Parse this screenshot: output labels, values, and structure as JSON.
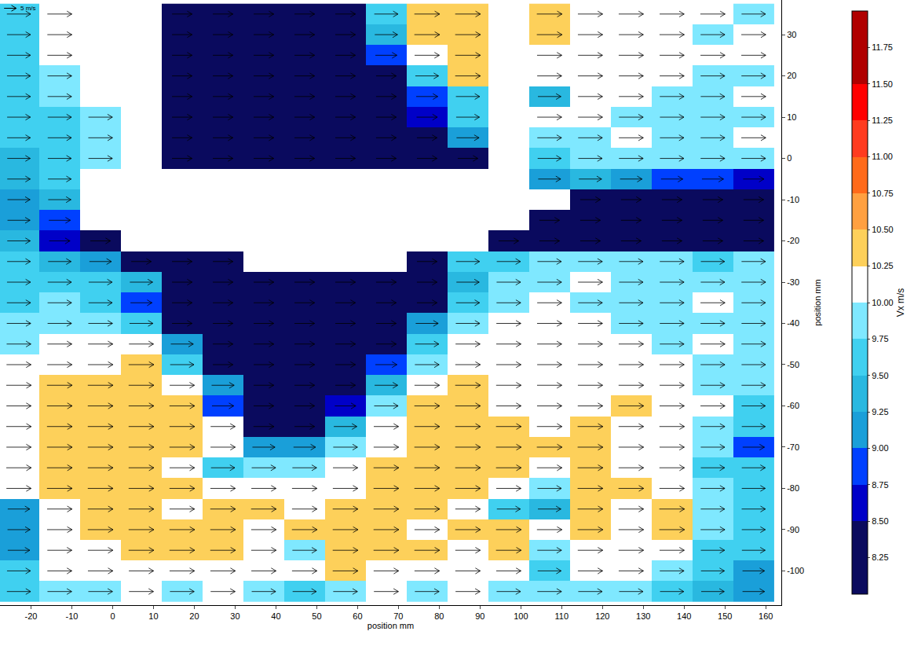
{
  "chart_data": {
    "type": "heatmap",
    "x_label": "position mm",
    "y_label": "position mm",
    "colorbar_title": "Vx m/s",
    "vector_key": {
      "value": 5,
      "label": "5 m/s"
    },
    "xlim": [
      -27.6,
      163.8
    ],
    "xticks": [
      -20,
      -10,
      0,
      10,
      20,
      30,
      40,
      50,
      60,
      70,
      80,
      90,
      100,
      110,
      120,
      130,
      140,
      150,
      160
    ],
    "ylim": [
      -108.3,
      38.4
    ],
    "yticks": [
      -100,
      -90,
      -80,
      -70,
      -60,
      -50,
      -40,
      -30,
      -20,
      -10,
      0,
      10,
      20,
      30
    ],
    "zlim": [
      8,
      12
    ],
    "zticks": [
      8.25,
      {
        "value": 8.5,
        "label": "8.50"
      },
      8.75,
      {
        "value": 9,
        "label": "9.00"
      },
      9.25,
      {
        "value": 9.5,
        "label": "9.50"
      },
      9.75,
      {
        "value": 10,
        "label": "10.00"
      },
      10.25,
      {
        "value": 10.5,
        "label": "10.50"
      },
      10.75,
      {
        "value": 11,
        "label": "11.00"
      },
      11.25,
      {
        "value": 11.5,
        "label": "11.50"
      },
      11.75
    ],
    "levels": [
      8,
      8.5,
      8.75,
      9,
      9.25,
      9.5,
      9.75,
      10,
      10.25,
      10.5,
      10.75,
      11,
      11.25,
      11.5,
      12
    ],
    "colors": [
      "#0a0a5e",
      "#0000c8",
      "#0040ff",
      "#1a9fd9",
      "#29b8e0",
      "#40d0f0",
      "#7fe8ff",
      "#ffffff",
      "#fdd05a",
      "#ffa040",
      "#ff6a1a",
      "#ff3b1f",
      "#ff0000",
      "#b00000"
    ],
    "x": [
      -23,
      -13,
      -3,
      7,
      17,
      27,
      37,
      47,
      57,
      67,
      77,
      87,
      97,
      107,
      117,
      127,
      137,
      147,
      157
    ],
    "y": [
      35,
      30,
      25,
      20,
      15,
      10,
      5,
      0,
      -5,
      -10,
      -15,
      -20,
      -25,
      -30,
      -35,
      -40,
      -45,
      -50,
      -55,
      -60,
      -65,
      -70,
      -75,
      -80,
      -85,
      -90,
      -95,
      -100,
      -105
    ],
    "z": [
      [
        9.7,
        10.0,
        null,
        null,
        8.2,
        8.2,
        8.2,
        8.2,
        8.2,
        9.7,
        10.3,
        10.3,
        null,
        10.3,
        10.1,
        10.1,
        10.0,
        10.1,
        9.8
      ],
      [
        9.6,
        10.0,
        null,
        null,
        8.2,
        8.2,
        8.2,
        8.2,
        8.2,
        9.3,
        10.3,
        10.3,
        null,
        10.3,
        10.1,
        10.0,
        10.1,
        9.9,
        10.0
      ],
      [
        9.6,
        10.0,
        null,
        null,
        8.2,
        8.2,
        8.2,
        8.2,
        8.2,
        8.8,
        10.1,
        10.3,
        null,
        10.1,
        10.0,
        10.1,
        10.0,
        10.0,
        10.0
      ],
      [
        9.6,
        9.9,
        null,
        null,
        8.2,
        8.2,
        8.2,
        8.2,
        8.2,
        8.2,
        9.5,
        10.3,
        null,
        10.0,
        10.1,
        10.0,
        10.0,
        9.9,
        9.9
      ],
      [
        9.6,
        9.8,
        null,
        null,
        8.2,
        8.2,
        8.2,
        8.2,
        8.2,
        8.2,
        8.8,
        9.7,
        null,
        9.4,
        10.0,
        10.0,
        9.9,
        9.8,
        10.0
      ],
      [
        9.5,
        9.7,
        9.8,
        null,
        8.2,
        8.2,
        8.2,
        8.2,
        8.2,
        8.2,
        8.5,
        9.5,
        null,
        10.0,
        10.0,
        9.9,
        9.8,
        9.9,
        9.9
      ],
      [
        9.5,
        9.7,
        9.9,
        null,
        8.2,
        8.2,
        8.2,
        8.2,
        8.2,
        8.2,
        8.2,
        9.2,
        null,
        9.9,
        9.9,
        10.0,
        9.8,
        9.9,
        10.0
      ],
      [
        9.4,
        9.6,
        9.8,
        null,
        8.2,
        8.2,
        8.2,
        8.2,
        8.2,
        8.2,
        8.2,
        8.2,
        null,
        9.6,
        9.8,
        9.9,
        9.8,
        9.9,
        9.9
      ],
      [
        9.4,
        9.5,
        null,
        null,
        null,
        null,
        null,
        null,
        null,
        null,
        null,
        null,
        null,
        9.2,
        9.3,
        9.0,
        8.9,
        8.8,
        8.5
      ],
      [
        9.2,
        9.3,
        null,
        null,
        null,
        null,
        null,
        null,
        null,
        null,
        null,
        null,
        null,
        null,
        8.2,
        8.2,
        8.2,
        8.2,
        8.2
      ],
      [
        9.2,
        8.8,
        null,
        null,
        null,
        null,
        null,
        null,
        null,
        null,
        null,
        null,
        null,
        8.2,
        8.2,
        8.2,
        8.2,
        8.2,
        8.2
      ],
      [
        9.4,
        8.5,
        8.2,
        null,
        null,
        null,
        null,
        null,
        null,
        null,
        null,
        null,
        8.2,
        8.2,
        8.2,
        8.2,
        8.2,
        8.2,
        8.2
      ],
      [
        9.5,
        9.4,
        9.0,
        8.2,
        8.2,
        8.2,
        null,
        null,
        null,
        null,
        8.2,
        9.6,
        9.7,
        9.8,
        9.9,
        9.8,
        9.9,
        9.7,
        9.8
      ],
      [
        9.6,
        9.7,
        9.6,
        9.3,
        8.2,
        8.2,
        8.2,
        8.2,
        8.2,
        8.2,
        8.2,
        9.3,
        9.8,
        9.9,
        10.0,
        9.8,
        9.9,
        9.8,
        9.9
      ],
      [
        9.7,
        9.8,
        9.7,
        8.8,
        8.2,
        8.2,
        8.2,
        8.2,
        8.2,
        8.2,
        8.2,
        9.6,
        9.9,
        10.0,
        9.9,
        9.8,
        9.9,
        10.0,
        9.8
      ],
      [
        9.8,
        9.8,
        9.9,
        9.6,
        8.2,
        8.2,
        8.2,
        8.2,
        8.2,
        8.2,
        9.2,
        9.8,
        10.0,
        10.1,
        10.0,
        9.9,
        9.9,
        9.9,
        9.8
      ],
      [
        9.9,
        10.0,
        10.1,
        10.0,
        9.2,
        8.2,
        8.2,
        8.2,
        8.2,
        8.2,
        9.7,
        10.0,
        10.1,
        10.0,
        10.0,
        10.1,
        9.9,
        10.0,
        9.9
      ],
      [
        10.0,
        10.1,
        10.2,
        10.3,
        9.7,
        8.2,
        8.2,
        8.2,
        8.2,
        8.8,
        9.9,
        10.2,
        10.1,
        10.0,
        10.1,
        10.1,
        10.0,
        9.9,
        9.8
      ],
      [
        10.2,
        10.3,
        10.3,
        10.3,
        10.1,
        9.2,
        8.2,
        8.2,
        8.2,
        9.4,
        10.2,
        10.3,
        10.2,
        10.1,
        10.1,
        10.2,
        10.0,
        9.9,
        9.8
      ],
      [
        10.1,
        10.3,
        10.3,
        10.3,
        10.3,
        8.9,
        8.2,
        8.2,
        8.6,
        9.8,
        10.3,
        10.3,
        10.2,
        10.1,
        10.2,
        10.3,
        10.1,
        10.0,
        9.7
      ],
      [
        10.2,
        10.3,
        10.3,
        10.3,
        10.3,
        10.0,
        8.4,
        8.2,
        9.4,
        10.1,
        10.3,
        10.3,
        10.3,
        10.2,
        10.3,
        10.2,
        10.2,
        9.9,
        9.6
      ],
      [
        10.1,
        10.3,
        10.3,
        10.3,
        10.3,
        10.1,
        9.2,
        9.0,
        9.9,
        10.2,
        10.3,
        10.3,
        10.3,
        10.3,
        10.3,
        10.2,
        10.1,
        9.8,
        8.9
      ],
      [
        10.2,
        10.3,
        10.3,
        10.3,
        10.2,
        9.7,
        9.8,
        9.9,
        10.1,
        10.3,
        10.3,
        10.3,
        10.3,
        10.2,
        10.3,
        10.2,
        10.2,
        9.7,
        9.6
      ],
      [
        10.1,
        10.3,
        10.3,
        10.3,
        10.3,
        10.2,
        10.1,
        10.2,
        10.2,
        10.3,
        10.3,
        10.3,
        10.1,
        9.8,
        10.3,
        10.3,
        10.2,
        9.9,
        9.6
      ],
      [
        9.0,
        10.2,
        10.3,
        10.3,
        10.2,
        10.3,
        10.3,
        10.2,
        10.3,
        10.3,
        10.3,
        10.2,
        9.6,
        9.4,
        10.3,
        10.2,
        10.3,
        9.8,
        9.7
      ],
      [
        9.2,
        10.2,
        10.3,
        10.3,
        10.3,
        10.3,
        10.2,
        10.3,
        10.3,
        10.3,
        10.2,
        10.3,
        10.3,
        10.2,
        10.3,
        10.2,
        10.3,
        9.9,
        9.6
      ],
      [
        9.0,
        10.0,
        10.2,
        10.3,
        10.3,
        10.3,
        10.2,
        9.9,
        10.3,
        10.3,
        10.3,
        10.2,
        10.3,
        9.9,
        10.2,
        10.2,
        10.1,
        9.7,
        9.5
      ],
      [
        9.6,
        10.0,
        10.2,
        10.1,
        10.2,
        10.2,
        10.1,
        10.2,
        10.3,
        10.2,
        10.2,
        10.2,
        10.1,
        9.6,
        10.1,
        10.1,
        9.9,
        9.6,
        9.0
      ],
      [
        9.7,
        9.9,
        9.9,
        10.0,
        9.9,
        10.0,
        9.8,
        9.7,
        9.9,
        10.0,
        9.9,
        10.0,
        9.8,
        9.9,
        9.8,
        9.8,
        9.7,
        9.4,
        9.0
      ]
    ]
  }
}
